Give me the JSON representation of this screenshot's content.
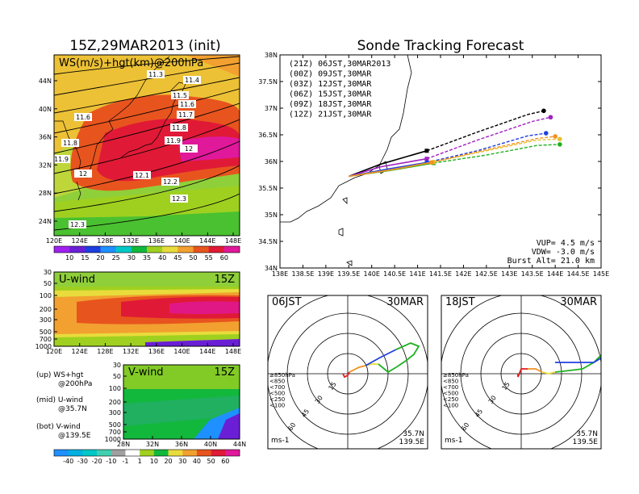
{
  "init_title": "15Z,29MAR2013 (init)",
  "main_title": "Sonde Tracking Forecast",
  "colors": {
    "wind_scale": [
      "#a020f0",
      "#6a1fd6",
      "#1d3fe0",
      "#1e90ff",
      "#00c8c8",
      "#12b83c",
      "#9fd020",
      "#e8dc3c",
      "#f2a030",
      "#e8541e",
      "#e01a36",
      "#e0189a"
    ],
    "land": "#e6a64a"
  },
  "top_map": {
    "label": "WS(m/s)+hgt(km)@200hPa",
    "lat_labels": [
      "44N",
      "40N",
      "36N",
      "32N",
      "28N",
      "24N"
    ],
    "lon_labels": [
      "120E",
      "124E",
      "128E",
      "132E",
      "136E",
      "140E",
      "144E",
      "148E"
    ],
    "contours": [
      "11.3",
      "11.4",
      "11.5",
      "11.6",
      "11.6",
      "11.7",
      "11.8",
      "11.9",
      "12",
      "11.8",
      "11.9",
      "12",
      "12.1",
      "12.2",
      "12.3",
      "12.3"
    ],
    "colorbar_labels": [
      "10",
      "15",
      "20",
      "25",
      "30",
      "35",
      "40",
      "45",
      "50",
      "55",
      "60"
    ]
  },
  "u_wind": {
    "label": "U-wind",
    "time": "15Z",
    "levels": [
      "30",
      "50",
      "100",
      "200",
      "300",
      "500",
      "700",
      "1000"
    ],
    "lon_labels": [
      "120E",
      "124E",
      "128E",
      "132E",
      "136E",
      "140E",
      "144E",
      "148E"
    ]
  },
  "v_wind": {
    "label": "V-wind",
    "time": "15Z",
    "levels": [
      "30",
      "50",
      "100",
      "200",
      "300",
      "500",
      "700",
      "1000"
    ],
    "lat_labels": [
      "28N",
      "32N",
      "36N",
      "40N",
      "44N"
    ],
    "colorbar_labels": [
      "-40",
      "-30",
      "-20",
      "-10",
      "-1",
      "1",
      "10",
      "20",
      "30",
      "40",
      "50",
      "60"
    ]
  },
  "notes": [
    {
      "k": "(up) WS+hgt",
      "v": "@200hPa"
    },
    {
      "k": "(mid) U-wind",
      "v": "@35.7N"
    },
    {
      "k": "(bot) V-wind",
      "v": "@139.5E"
    }
  ],
  "track": {
    "lat_labels": [
      "38N",
      "37.5N",
      "37N",
      "36.5N",
      "36N",
      "35.5N",
      "35N",
      "34.5N",
      "34N"
    ],
    "lon_labels": [
      "138E",
      "138.5E",
      "139E",
      "139.5E",
      "140E",
      "140.5E",
      "141E",
      "141.5E",
      "142E",
      "142.5E",
      "143E",
      "143.5E",
      "144E",
      "144.5E",
      "145E"
    ],
    "info": [
      "VUP= 4.5 m/s",
      "VDW= -3.0 m/s",
      "Burst Alt= 21.0 km"
    ]
  },
  "hodo_left": {
    "time": "06JST",
    "date": "30MAR",
    "lat": "35.7N",
    "lon": "139.5E",
    "unit": "ms-1",
    "rings": [
      "15",
      "30",
      "45",
      "60"
    ]
  },
  "hodo_right": {
    "time": "18JST",
    "date": "30MAR",
    "lat": "35.7N",
    "lon": "139.5E",
    "unit": "ms-1",
    "rings": [
      "15",
      "30",
      "45",
      "60"
    ]
  },
  "hodo_legend": [
    {
      "label": "≥850hPa",
      "color": "#e01a1a"
    },
    {
      "label": "<850",
      "color": "#f09020"
    },
    {
      "label": "<700",
      "color": "#e8dc3c"
    },
    {
      "label": "<500",
      "color": "#20b020"
    },
    {
      "label": "<250",
      "color": "#00c8c8"
    },
    {
      "label": "<100",
      "color": "#2040e0"
    }
  ],
  "chart_data": {
    "type": "line",
    "title": "Sonde Tracking Forecast",
    "xlabel": "",
    "ylabel": "",
    "xlim": [
      138,
      145
    ],
    "ylim": [
      34,
      38
    ],
    "launch": {
      "lon": 139.5,
      "lat": 35.72
    },
    "series": [
      {
        "name": "(21Z) 06JST,30MAR2013",
        "color": "#000000",
        "lon": [
          139.5,
          140.2,
          141.2,
          142.3,
          143.4,
          143.75
        ],
        "lat": [
          35.72,
          35.95,
          36.2,
          36.55,
          36.88,
          36.95
        ]
      },
      {
        "name": "(00Z) 09JST,30MAR",
        "color": "#a020c0",
        "lon": [
          139.5,
          140.2,
          141.2,
          142.3,
          143.5,
          143.9
        ],
        "lat": [
          35.72,
          35.9,
          36.05,
          36.4,
          36.75,
          36.83
        ]
      },
      {
        "name": "(03Z) 12JST,30MAR",
        "color": "#2040e0",
        "lon": [
          139.5,
          140.3,
          141.2,
          142.3,
          143.4,
          143.8
        ],
        "lat": [
          35.72,
          35.85,
          35.98,
          36.2,
          36.48,
          36.53
        ]
      },
      {
        "name": "(06Z) 15JST,30MAR",
        "color": "#20b020",
        "lon": [
          139.5,
          140.4,
          141.35,
          142.5,
          143.6,
          144.1
        ],
        "lat": [
          35.72,
          35.83,
          35.97,
          36.12,
          36.3,
          36.32
        ]
      },
      {
        "name": "(09Z) 18JST,30MAR",
        "color": "#e8c030",
        "lon": [
          139.5,
          140.4,
          141.35,
          142.5,
          143.6,
          144.1
        ],
        "lat": [
          35.72,
          35.84,
          35.99,
          36.2,
          36.4,
          36.42
        ]
      },
      {
        "name": "(12Z) 21JST,30MAR",
        "color": "#f09020",
        "lon": [
          139.5,
          140.4,
          141.3,
          142.5,
          143.6,
          144.0
        ],
        "lat": [
          35.72,
          35.84,
          35.98,
          36.22,
          36.43,
          36.47
        ]
      }
    ]
  }
}
